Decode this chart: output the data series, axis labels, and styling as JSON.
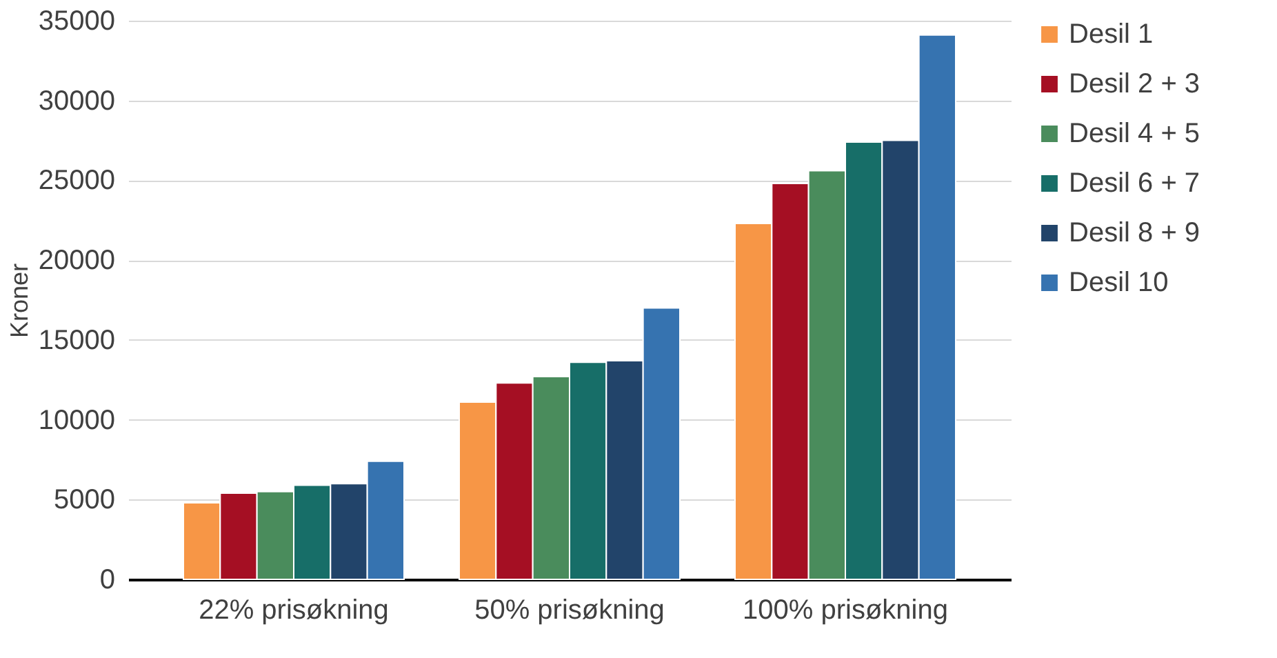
{
  "chart_data": {
    "type": "bar",
    "ylabel": "Kroner",
    "categories": [
      "22% prisøkning",
      "50% prisøkning",
      "100% prisøkning"
    ],
    "series": [
      {
        "name": "Desil 1",
        "color": "#f79646",
        "values": [
          4800,
          11100,
          22300
        ]
      },
      {
        "name": "Desil 2 + 3",
        "color": "#a50f23",
        "values": [
          5400,
          12300,
          24800
        ]
      },
      {
        "name": "Desil 4 + 5",
        "color": "#4a8c5c",
        "values": [
          5500,
          12700,
          25600
        ]
      },
      {
        "name": "Desil 6 + 7",
        "color": "#176e68",
        "values": [
          5900,
          13600,
          27400
        ]
      },
      {
        "name": "Desil 8 + 9",
        "color": "#22446a",
        "values": [
          6000,
          13700,
          27500
        ]
      },
      {
        "name": "Desil 10",
        "color": "#3673b0",
        "values": [
          7400,
          17000,
          34100
        ]
      }
    ],
    "ylim": [
      0,
      35000
    ],
    "yticks": [
      0,
      5000,
      10000,
      15000,
      20000,
      25000,
      30000,
      35000
    ],
    "grid": "y",
    "legend": "right"
  }
}
